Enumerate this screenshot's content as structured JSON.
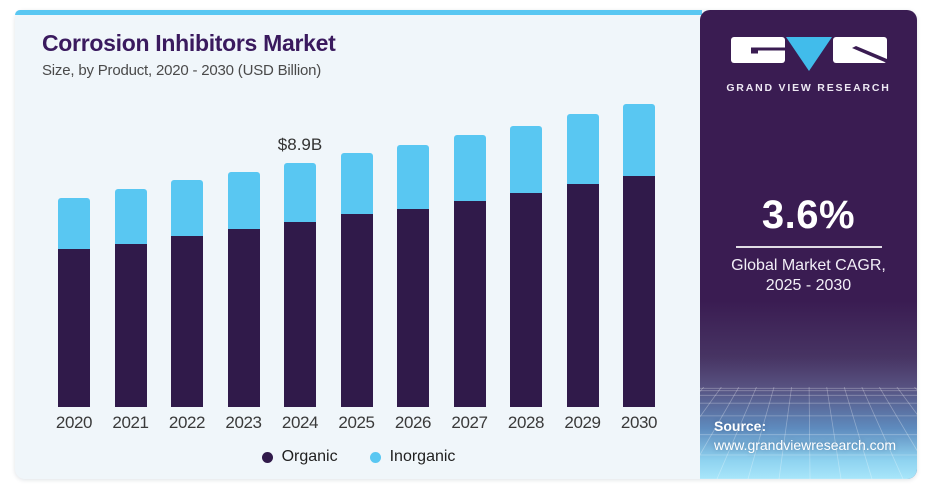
{
  "header": {
    "title": "Corrosion Inhibitors Market",
    "subtitle": "Size, by Product, 2020 - 2030 (USD Billion)"
  },
  "chart_data": {
    "type": "bar",
    "stacked": true,
    "title": "Corrosion Inhibitors Market Size, by Product, 2020 - 2030 (USD Billion)",
    "unit": "USD Billion",
    "categories": [
      "2020",
      "2021",
      "2022",
      "2023",
      "2024",
      "2025",
      "2026",
      "2027",
      "2028",
      "2029",
      "2030"
    ],
    "series": [
      {
        "name": "Organic",
        "color": "#301A4A",
        "values": [
          5.74,
          5.95,
          6.23,
          6.47,
          6.75,
          7.02,
          7.22,
          7.5,
          7.81,
          8.11,
          8.41
        ]
      },
      {
        "name": "Inorganic",
        "color": "#59C7F2",
        "values": [
          1.88,
          1.98,
          2.03,
          2.09,
          2.15,
          2.24,
          2.31,
          2.4,
          2.43,
          2.55,
          2.62
        ]
      }
    ],
    "totals": [
      7.62,
      7.93,
      8.26,
      8.56,
      8.9,
      9.26,
      9.53,
      9.9,
      10.24,
      10.66,
      11.03
    ],
    "annotation": {
      "category": "2024",
      "label": "$8.9B"
    },
    "ylim": [
      0,
      11.5
    ],
    "gridlines": false,
    "legend_position": "bottom"
  },
  "legend": {
    "items": [
      {
        "label": "Organic",
        "color": "#301A4A"
      },
      {
        "label": "Inorganic",
        "color": "#59C7F2"
      }
    ]
  },
  "panel": {
    "brand": "GRAND VIEW RESEARCH",
    "cagr": {
      "value": "3.6%",
      "label_line1": "Global Market CAGR,",
      "label_line2": "2025 - 2030"
    },
    "source": {
      "label": "Source:",
      "url": "www.grandviewresearch.com"
    }
  },
  "colors": {
    "card_background": "#F0F6FA",
    "accent_strip": "#59C7F2",
    "organic_bar": "#301A4A",
    "inorganic_bar": "#59C7F2",
    "title_text": "#3A1A5E",
    "panel_background": "#3A1C52",
    "mesh_bottom": "#A8E6FA"
  }
}
